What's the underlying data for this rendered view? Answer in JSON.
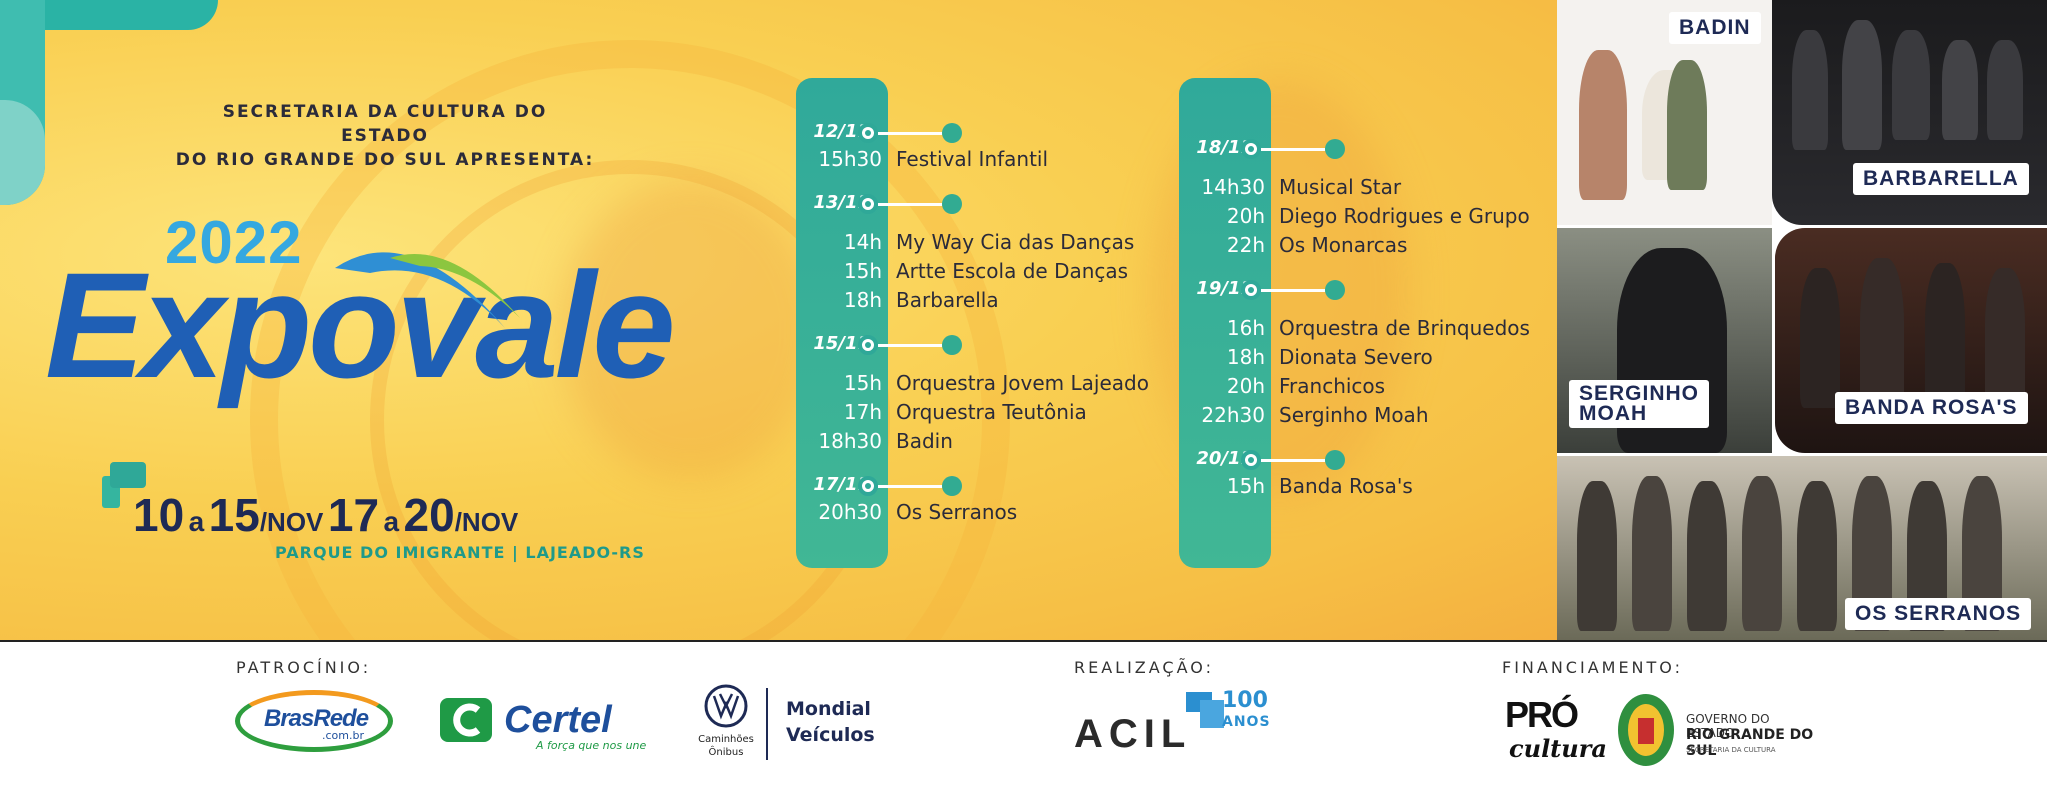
{
  "presenter": {
    "line1": "SECRETARIA DA CULTURA DO ESTADO",
    "line2": "DO RIO GRANDE DO SUL APRESENTA:"
  },
  "logo": {
    "year": "2022",
    "word": "Expovale"
  },
  "dates": {
    "d1": "10",
    "a1": "a",
    "d2": "15",
    "m1": "/NOV",
    "d3": "17",
    "a2": "a",
    "d4": "20",
    "m2": "/NOV"
  },
  "venue": "PARQUE DO IMIGRANTE | LAJEADO-RS",
  "schedule_left": [
    {
      "date": "12/11",
      "events": [
        {
          "time": "15h30",
          "name": "Festival Infantil"
        }
      ]
    },
    {
      "date": "13/11",
      "events": [
        {
          "time": "14h",
          "name": "My Way Cia das Danças"
        },
        {
          "time": "15h",
          "name": "Artte Escola de Danças"
        },
        {
          "time": "18h",
          "name": "Barbarella"
        }
      ]
    },
    {
      "date": "15/11",
      "events": [
        {
          "time": "15h",
          "name": "Orquestra Jovem Lajeado"
        },
        {
          "time": "17h",
          "name": "Orquestra Teutônia"
        },
        {
          "time": "18h30",
          "name": "Badin"
        }
      ]
    },
    {
      "date": "17/11",
      "events": [
        {
          "time": "20h30",
          "name": "Os Serranos"
        }
      ]
    }
  ],
  "schedule_right": [
    {
      "date": "18/11",
      "events": [
        {
          "time": "14h30",
          "name": "Musical Star"
        },
        {
          "time": "20h",
          "name": "Diego Rodrigues e Grupo"
        },
        {
          "time": "22h",
          "name": "Os Monarcas"
        }
      ]
    },
    {
      "date": "19/11",
      "events": [
        {
          "time": "16h",
          "name": "Orquestra de Brinquedos"
        },
        {
          "time": "18h",
          "name": "Dionata Severo"
        },
        {
          "time": "20h",
          "name": "Franchicos"
        },
        {
          "time": "22h30",
          "name": "Serginho Moah"
        }
      ]
    },
    {
      "date": "20/11",
      "events": [
        {
          "time": "15h",
          "name": "Banda Rosa's"
        }
      ]
    }
  ],
  "photos": {
    "badin": "BADIN",
    "barbarella": "BARBARELLA",
    "serginho_1": "SERGINHO",
    "serginho_2": "MOAH",
    "banda_rosas": "BANDA ROSA'S",
    "os_serranos": "OS SERRANOS"
  },
  "footer": {
    "patrocinio_label": "PATROCÍNIO:",
    "realizacao_label": "REALIZAÇÃO:",
    "financiamento_label": "FINANCIAMENTO:",
    "brasrede": {
      "name": "BrasRede",
      "domain": ".com.br"
    },
    "certel": {
      "name": "Certel",
      "slogan": "A força que nos une"
    },
    "vw": {
      "line1": "Caminhões",
      "line2": "Ônibus",
      "dealer1": "Mondial",
      "dealer2": "Veículos"
    },
    "acil": {
      "name": "ACIL",
      "num": "100",
      "anos": "ANOS"
    },
    "procultura": {
      "top": "PRÓ",
      "bottom": "cultura"
    },
    "governo": {
      "line1": "GOVERNO DO ESTADO",
      "line2": "RIO GRANDE DO SUL",
      "line3": "SECRETARIA DA CULTURA"
    }
  },
  "colors": {
    "teal": "#2fa898",
    "navy": "#1e2a55",
    "blue": "#1f5fb5",
    "yellow": "#f9cf52"
  }
}
